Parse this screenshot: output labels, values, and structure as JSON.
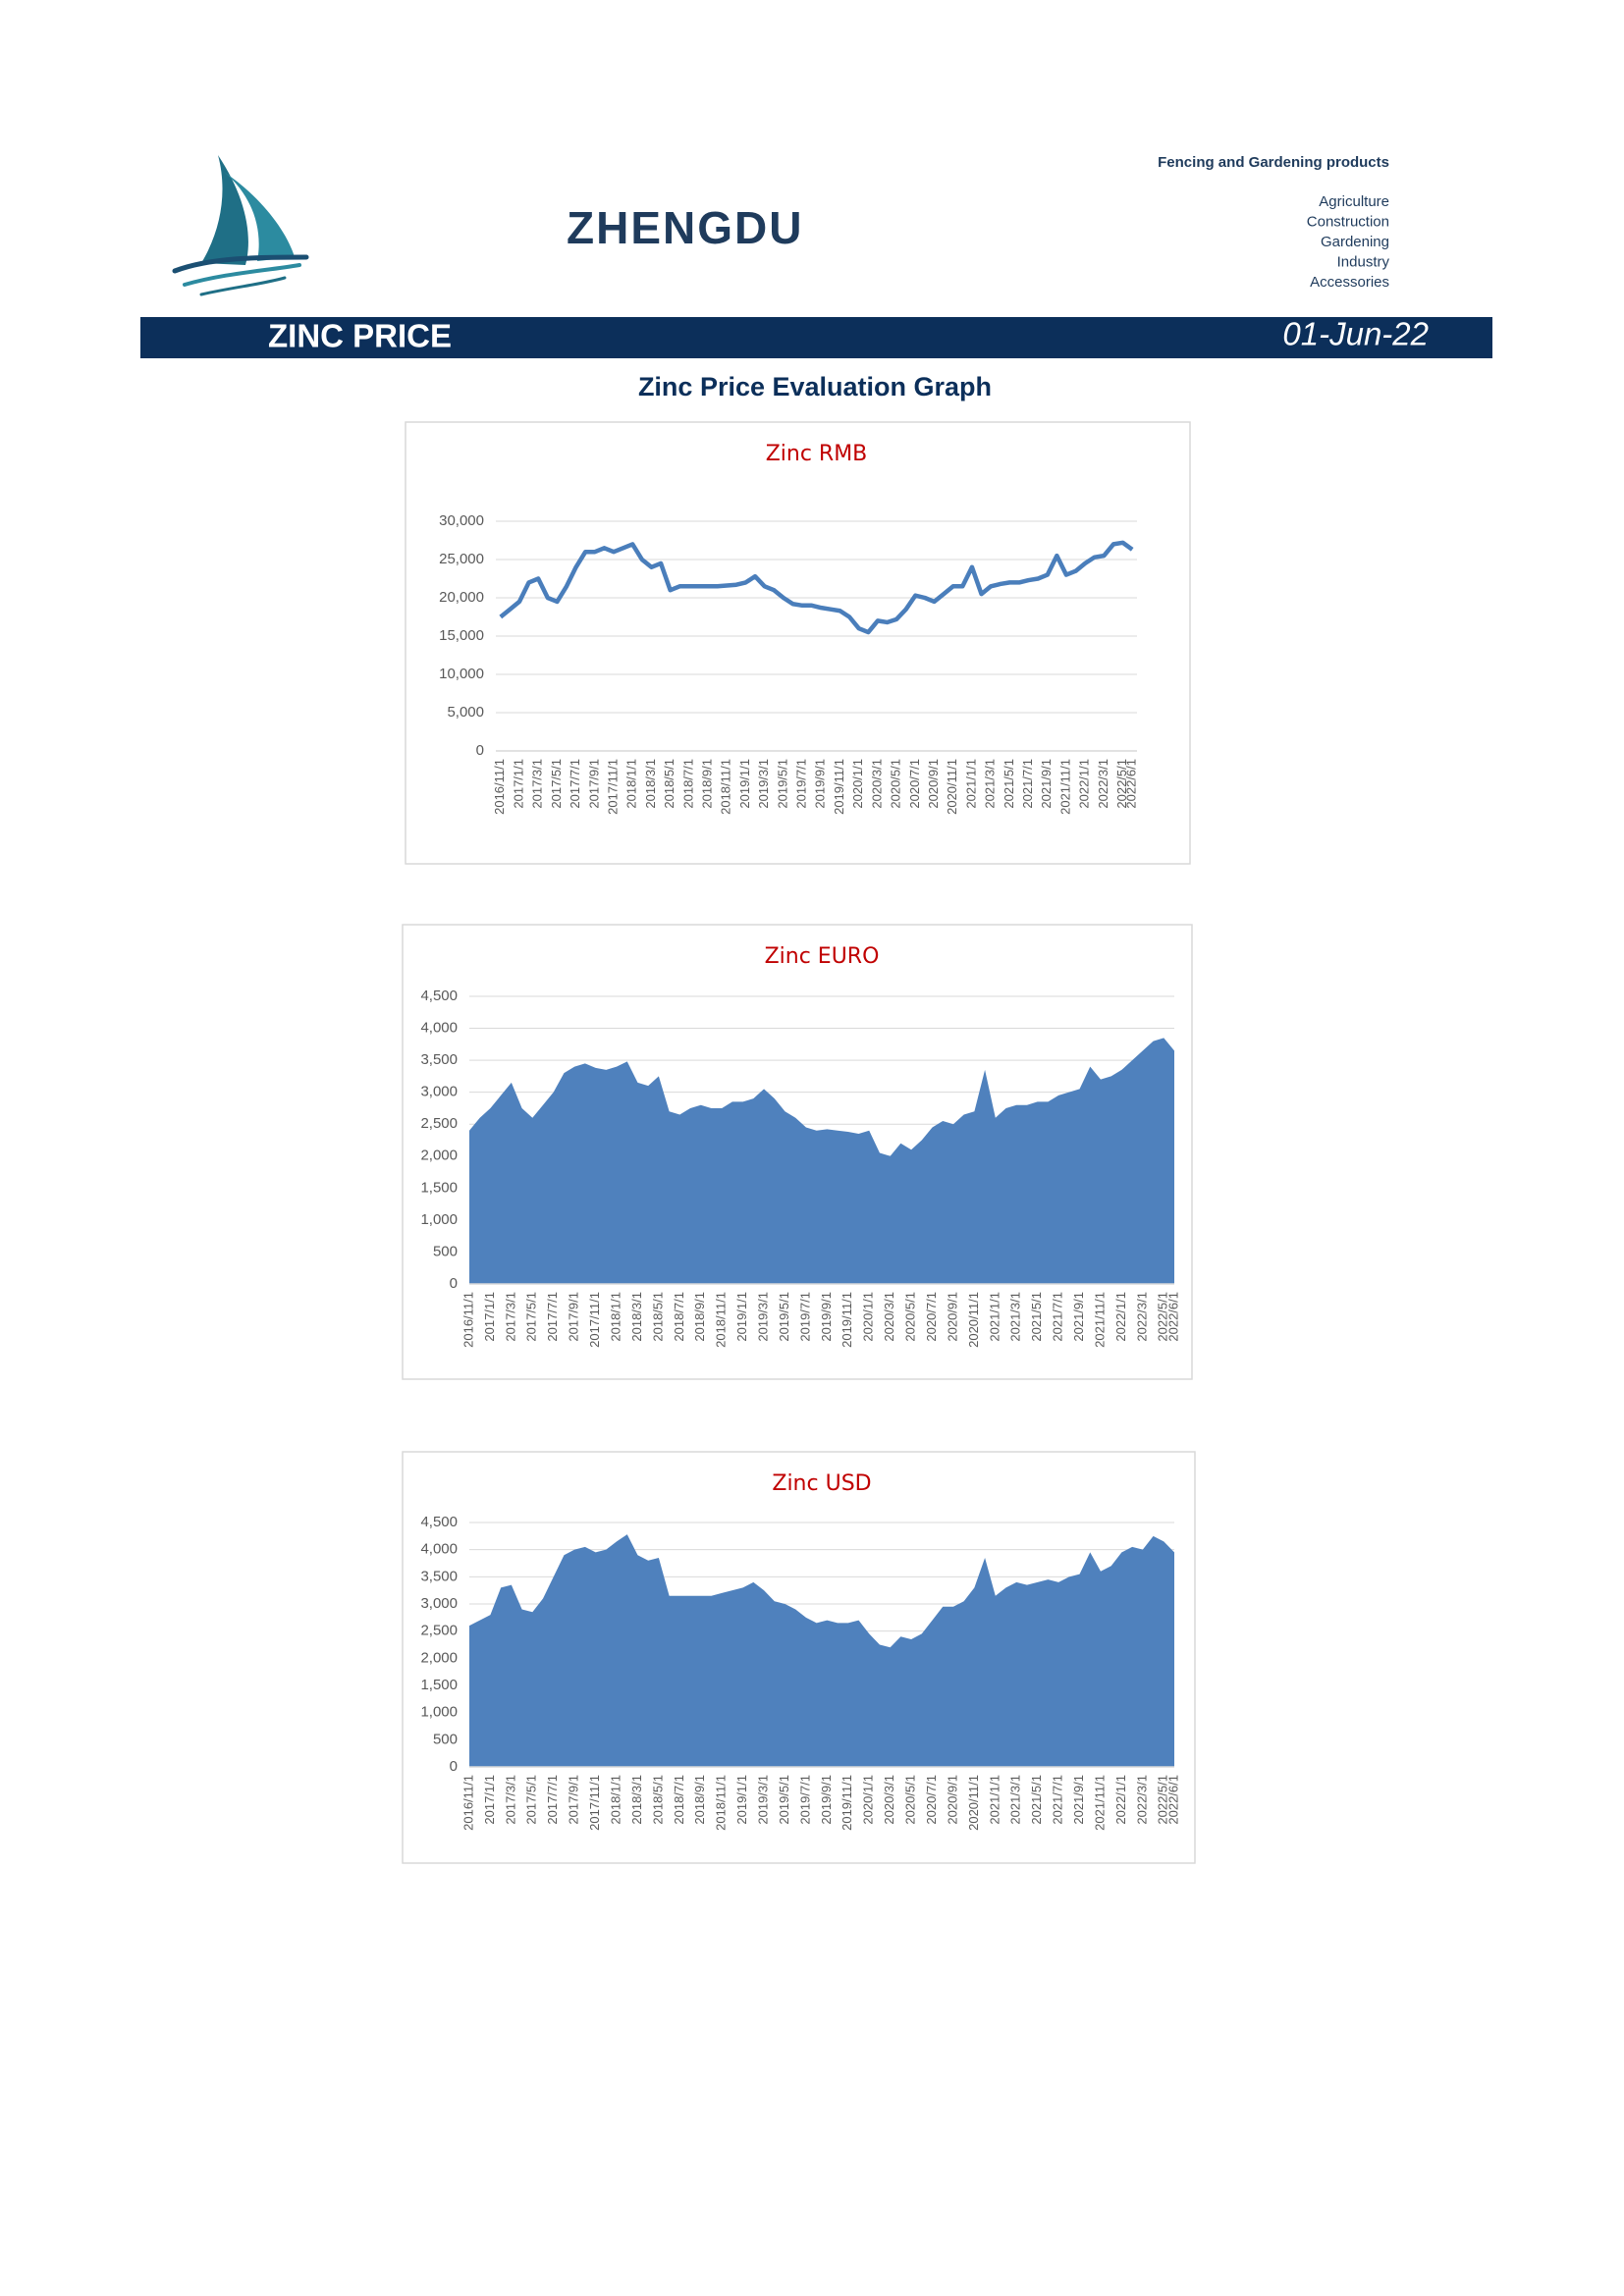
{
  "header": {
    "brand": "ZHENGDU",
    "tagline": "Fencing and Gardening products",
    "sectors": [
      "Agriculture",
      "Construction",
      "Gardening",
      "Industry",
      "Accessories"
    ]
  },
  "banner": {
    "title": "ZINC PRICE",
    "date": "01-Jun-22"
  },
  "heading": "Zinc Price Evaluation Graph",
  "chart_data": [
    {
      "type": "line",
      "title": "Zinc RMB",
      "color": "#4a7ebb",
      "grid": true,
      "categories": [
        "2016/11/1",
        null,
        "2017/1/1",
        null,
        "2017/3/1",
        null,
        "2017/5/1",
        null,
        "2017/7/1",
        null,
        "2017/9/1",
        null,
        "2017/11/1",
        null,
        "2018/1/1",
        null,
        "2018/3/1",
        null,
        "2018/5/1",
        null,
        "2018/7/1",
        null,
        "2018/9/1",
        null,
        "2018/11/1",
        null,
        "2019/1/1",
        null,
        "2019/3/1",
        null,
        "2019/5/1",
        null,
        "2019/7/1",
        null,
        "2019/9/1",
        null,
        "2019/11/1",
        null,
        "2020/1/1",
        null,
        "2020/3/1",
        null,
        "2020/5/1",
        null,
        "2020/7/1",
        null,
        "2020/9/1",
        null,
        "2020/11/1",
        null,
        "2021/1/1",
        null,
        "2021/3/1",
        null,
        "2021/5/1",
        null,
        "2021/7/1",
        null,
        "2021/9/1",
        null,
        "2021/11/1",
        null,
        "2022/1/1",
        null,
        "2022/3/1",
        null,
        "2022/5/1",
        "2022/6/1"
      ],
      "values": [
        17500,
        18500,
        19500,
        22000,
        22500,
        20000,
        19500,
        21500,
        24000,
        26000,
        26000,
        26500,
        26000,
        26500,
        27000,
        25000,
        24000,
        24500,
        21000,
        21500,
        21500,
        21500,
        21500,
        21500,
        21600,
        21700,
        22000,
        22800,
        21500,
        21000,
        20000,
        19200,
        19000,
        19000,
        18700,
        18500,
        18300,
        17500,
        16000,
        15500,
        17000,
        16800,
        17200,
        18500,
        20300,
        20000,
        19500,
        20500,
        21500,
        21500,
        24000,
        20500,
        21500,
        21800,
        22000,
        22000,
        22300,
        22500,
        23000,
        25500,
        23000,
        23500,
        24500,
        25300,
        25500,
        27000,
        27200,
        26300
      ],
      "ylim": [
        0,
        30000
      ],
      "yticks": [
        0,
        {
          "value": 5000,
          "label": "5,000"
        },
        {
          "value": 10000,
          "label": "10,000"
        },
        {
          "value": 15000,
          "label": "15,000"
        },
        {
          "value": 20000,
          "label": "20,000"
        },
        {
          "value": 25000,
          "label": "25,000"
        },
        {
          "value": 30000,
          "label": "30,000"
        }
      ]
    },
    {
      "type": "area",
      "title": "Zinc EURO",
      "color": "#4f81bd",
      "grid": true,
      "categories": [
        "2016/11/1",
        null,
        "2017/1/1",
        null,
        "2017/3/1",
        null,
        "2017/5/1",
        null,
        "2017/7/1",
        null,
        "2017/9/1",
        null,
        "2017/11/1",
        null,
        "2018/1/1",
        null,
        "2018/3/1",
        null,
        "2018/5/1",
        null,
        "2018/7/1",
        null,
        "2018/9/1",
        null,
        "2018/11/1",
        null,
        "2019/1/1",
        null,
        "2019/3/1",
        null,
        "2019/5/1",
        null,
        "2019/7/1",
        null,
        "2019/9/1",
        null,
        "2019/11/1",
        null,
        "2020/1/1",
        null,
        "2020/3/1",
        null,
        "2020/5/1",
        null,
        "2020/7/1",
        null,
        "2020/9/1",
        null,
        "2020/11/1",
        null,
        "2021/1/1",
        null,
        "2021/3/1",
        null,
        "2021/5/1",
        null,
        "2021/7/1",
        null,
        "2021/9/1",
        null,
        "2021/11/1",
        null,
        "2022/1/1",
        null,
        "2022/3/1",
        null,
        "2022/5/1",
        "2022/6/1"
      ],
      "values": [
        2400,
        2600,
        2750,
        2950,
        3150,
        2750,
        2600,
        2800,
        3000,
        3300,
        3400,
        3450,
        3380,
        3350,
        3400,
        3480,
        3150,
        3100,
        3250,
        2700,
        2650,
        2750,
        2800,
        2750,
        2750,
        2850,
        2850,
        2900,
        3050,
        2900,
        2700,
        2600,
        2450,
        2400,
        2420,
        2400,
        2380,
        2350,
        2400,
        2050,
        2000,
        2200,
        2100,
        2250,
        2450,
        2550,
        2500,
        2650,
        2700,
        3350,
        2600,
        2750,
        2800,
        2800,
        2850,
        2850,
        2950,
        3000,
        3050,
        3400,
        3200,
        3250,
        3350,
        3500,
        3650,
        3800,
        3850,
        3650
      ],
      "ylim": [
        0,
        4500
      ],
      "yticks": [
        0,
        500,
        {
          "value": 1000,
          "label": "1,000"
        },
        {
          "value": 1500,
          "label": "1,500"
        },
        {
          "value": 2000,
          "label": "2,000"
        },
        {
          "value": 2500,
          "label": "2,500"
        },
        {
          "value": 3000,
          "label": "3,000"
        },
        {
          "value": 3500,
          "label": "3,500"
        },
        {
          "value": 4000,
          "label": "4,000"
        },
        {
          "value": 4500,
          "label": "4,500"
        }
      ]
    },
    {
      "type": "area",
      "title": "Zinc USD",
      "color": "#4f81bd",
      "grid": true,
      "categories": [
        "2016/11/1",
        null,
        "2017/1/1",
        null,
        "2017/3/1",
        null,
        "2017/5/1",
        null,
        "2017/7/1",
        null,
        "2017/9/1",
        null,
        "2017/11/1",
        null,
        "2018/1/1",
        null,
        "2018/3/1",
        null,
        "2018/5/1",
        null,
        "2018/7/1",
        null,
        "2018/9/1",
        null,
        "2018/11/1",
        null,
        "2019/1/1",
        null,
        "2019/3/1",
        null,
        "2019/5/1",
        null,
        "2019/7/1",
        null,
        "2019/9/1",
        null,
        "2019/11/1",
        null,
        "2020/1/1",
        null,
        "2020/3/1",
        null,
        "2020/5/1",
        null,
        "2020/7/1",
        null,
        "2020/9/1",
        null,
        "2020/11/1",
        null,
        "2021/1/1",
        null,
        "2021/3/1",
        null,
        "2021/5/1",
        null,
        "2021/7/1",
        null,
        "2021/9/1",
        null,
        "2021/11/1",
        null,
        "2022/1/1",
        null,
        "2022/3/1",
        null,
        "2022/5/1",
        "2022/6/1"
      ],
      "values": [
        2600,
        2700,
        2800,
        3300,
        3350,
        2900,
        2850,
        3100,
        3500,
        3900,
        4000,
        4050,
        3950,
        4000,
        4150,
        4280,
        3900,
        3800,
        3850,
        3150,
        3150,
        3150,
        3150,
        3150,
        3200,
        3250,
        3300,
        3400,
        3250,
        3050,
        3000,
        2900,
        2750,
        2650,
        2700,
        2650,
        2650,
        2700,
        2450,
        2250,
        2200,
        2400,
        2350,
        2450,
        2700,
        2950,
        2950,
        3050,
        3300,
        3850,
        3150,
        3300,
        3400,
        3350,
        3400,
        3450,
        3400,
        3500,
        3550,
        3950,
        3600,
        3700,
        3950,
        4050,
        4000,
        4250,
        4150,
        3950
      ],
      "ylim": [
        0,
        4500
      ],
      "yticks": [
        0,
        500,
        {
          "value": 1000,
          "label": "1,000"
        },
        {
          "value": 1500,
          "label": "1,500"
        },
        {
          "value": 2000,
          "label": "2,000"
        },
        {
          "value": 2500,
          "label": "2,500"
        },
        {
          "value": 3000,
          "label": "3,000"
        },
        {
          "value": 3500,
          "label": "3,500"
        },
        {
          "value": 4000,
          "label": "4,000"
        },
        {
          "value": 4500,
          "label": "4,500"
        }
      ]
    }
  ]
}
